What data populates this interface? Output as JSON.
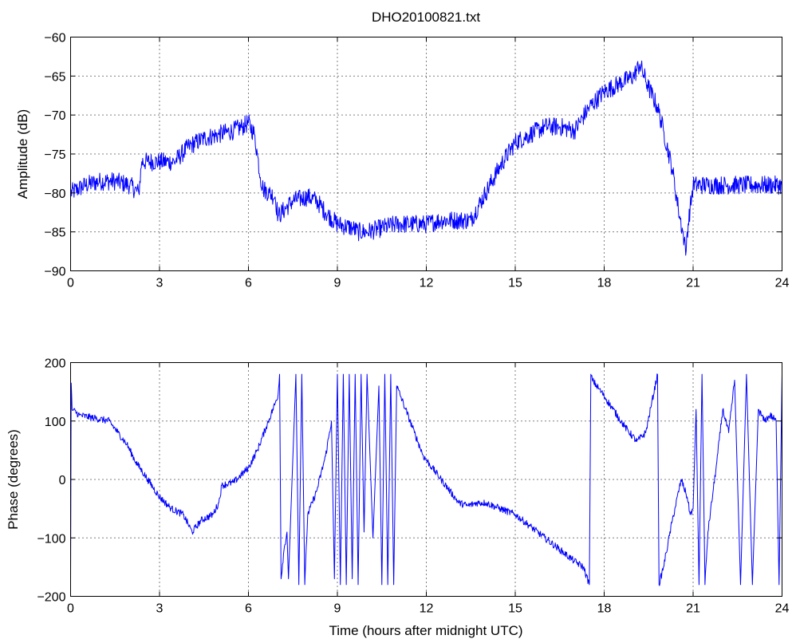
{
  "chart_data": [
    {
      "type": "line",
      "title": "DHO20100821.txt",
      "xlabel": "",
      "ylabel": "Amplitude (dB)",
      "xlim": [
        0,
        24
      ],
      "ylim": [
        -90,
        -60
      ],
      "x_ticks": [
        0,
        3,
        6,
        9,
        12,
        15,
        18,
        21,
        24
      ],
      "x_tick_labels": [
        "0",
        "3",
        "6",
        "9",
        "12",
        "15",
        "18",
        "21",
        "24"
      ],
      "y_ticks": [
        -90,
        -85,
        -80,
        -75,
        -70,
        -65,
        -60
      ],
      "y_tick_labels": [
        "−90",
        "−85",
        "−80",
        "−75",
        "−70",
        "−65",
        "−60"
      ],
      "grid": true,
      "color": "#0000ff",
      "series": [
        {
          "x": [
            0,
            0.5,
            1.0,
            1.5,
            2.0,
            2.3,
            2.4,
            2.6,
            3.0,
            3.5,
            4.0,
            4.5,
            5.0,
            5.5,
            5.8,
            6.0,
            6.2,
            6.3,
            6.4,
            6.5,
            6.7,
            6.9,
            7.0,
            7.5,
            8.0,
            8.3,
            8.6,
            9.0,
            9.5,
            9.7,
            10.0,
            10.5,
            11.0,
            11.5,
            12.0,
            12.5,
            13.0,
            13.5,
            14.0,
            14.5,
            15.0,
            15.5,
            16.0,
            16.5,
            17.0,
            17.5,
            18.0,
            18.5,
            19.0,
            19.2,
            19.5,
            19.8,
            20.0,
            20.3,
            20.5,
            20.7,
            20.75,
            20.8,
            21.0,
            21.5,
            22.0,
            22.5,
            23.0,
            23.5,
            24.0
          ],
          "y": [
            -80,
            -79,
            -78.5,
            -78.5,
            -79,
            -80,
            -76,
            -76,
            -76,
            -76,
            -74,
            -73,
            -72.5,
            -72,
            -71.5,
            -71,
            -72.5,
            -75,
            -78,
            -79.5,
            -80,
            -80.5,
            -83,
            -81,
            -80.5,
            -81,
            -82.5,
            -84,
            -84.5,
            -85,
            -85,
            -84.5,
            -84,
            -84,
            -84,
            -83.5,
            -83.5,
            -83.5,
            -80,
            -76.5,
            -73.5,
            -72.5,
            -71.5,
            -71.5,
            -72,
            -69,
            -67,
            -66,
            -65,
            -63.5,
            -66.5,
            -69,
            -72,
            -77,
            -82,
            -86,
            -88,
            -85,
            -79,
            -79,
            -79,
            -79,
            -79,
            -79,
            -79
          ]
        }
      ]
    },
    {
      "type": "line",
      "title": "",
      "xlabel": "Time (hours after midnight UTC)",
      "ylabel": "Phase (degrees)",
      "xlim": [
        0,
        24
      ],
      "ylim": [
        -200,
        200
      ],
      "x_ticks": [
        0,
        3,
        6,
        9,
        12,
        15,
        18,
        21,
        24
      ],
      "x_tick_labels": [
        "0",
        "3",
        "6",
        "9",
        "12",
        "15",
        "18",
        "21",
        "24"
      ],
      "y_ticks": [
        -200,
        -100,
        0,
        100,
        200
      ],
      "y_tick_labels": [
        "−200",
        "−100",
        "0",
        "100",
        "200"
      ],
      "grid": true,
      "color": "#0000ff",
      "series": [
        {
          "x": [
            0,
            0.02,
            0.05,
            0.3,
            0.8,
            1.3,
            1.6,
            1.9,
            2.2,
            2.6,
            3.0,
            3.4,
            3.8,
            4.1,
            4.4,
            4.8,
            5.0,
            5.1,
            5.5,
            6.0,
            6.3,
            6.6,
            6.9,
            7.0,
            7.05,
            7.1,
            7.2,
            7.3,
            7.35,
            7.6,
            7.7,
            7.8,
            7.9,
            8.0,
            8.3,
            8.6,
            8.8,
            8.9,
            9.0,
            9.1,
            9.2,
            9.3,
            9.4,
            9.5,
            9.6,
            9.7,
            9.8,
            9.9,
            10.0,
            10.2,
            10.4,
            10.5,
            10.6,
            10.7,
            10.8,
            10.9,
            11.0,
            11.3,
            11.6,
            11.9,
            12.2,
            12.5,
            12.8,
            13.1,
            13.4,
            13.7,
            14.0,
            14.5,
            15.0,
            15.5,
            16.0,
            16.5,
            17.0,
            17.3,
            17.5,
            17.55,
            17.6,
            17.9,
            18.3,
            18.7,
            19.1,
            19.4,
            19.6,
            19.8,
            19.85,
            20.0,
            20.3,
            20.6,
            20.8,
            20.9,
            21.0,
            21.1,
            21.2,
            21.3,
            21.4,
            21.5,
            21.8,
            22.0,
            22.2,
            22.4,
            22.6,
            22.8,
            23.0,
            23.2,
            23.4,
            23.6,
            23.8,
            23.9,
            24.0
          ],
          "y": [
            -170,
            165,
            120,
            110,
            105,
            100,
            80,
            60,
            30,
            0,
            -30,
            -50,
            -60,
            -90,
            -70,
            -60,
            -40,
            -10,
            -5,
            20,
            50,
            90,
            130,
            145,
            180,
            -170,
            -120,
            -90,
            -170,
            180,
            -180,
            180,
            -180,
            -60,
            -20,
            40,
            100,
            -170,
            180,
            -180,
            180,
            -180,
            180,
            -170,
            180,
            -180,
            180,
            -90,
            180,
            -100,
            160,
            -180,
            180,
            -180,
            180,
            -180,
            160,
            120,
            80,
            40,
            20,
            0,
            -20,
            -40,
            -45,
            -40,
            -40,
            -50,
            -60,
            -80,
            -100,
            -120,
            -140,
            -150,
            -180,
            180,
            170,
            150,
            120,
            90,
            65,
            80,
            130,
            180,
            -180,
            -150,
            -70,
            0,
            -30,
            -60,
            -50,
            120,
            -180,
            180,
            -180,
            -90,
            30,
            120,
            80,
            170,
            -180,
            180,
            -180,
            120,
            100,
            110,
            100,
            -180,
            180
          ]
        }
      ]
    }
  ]
}
